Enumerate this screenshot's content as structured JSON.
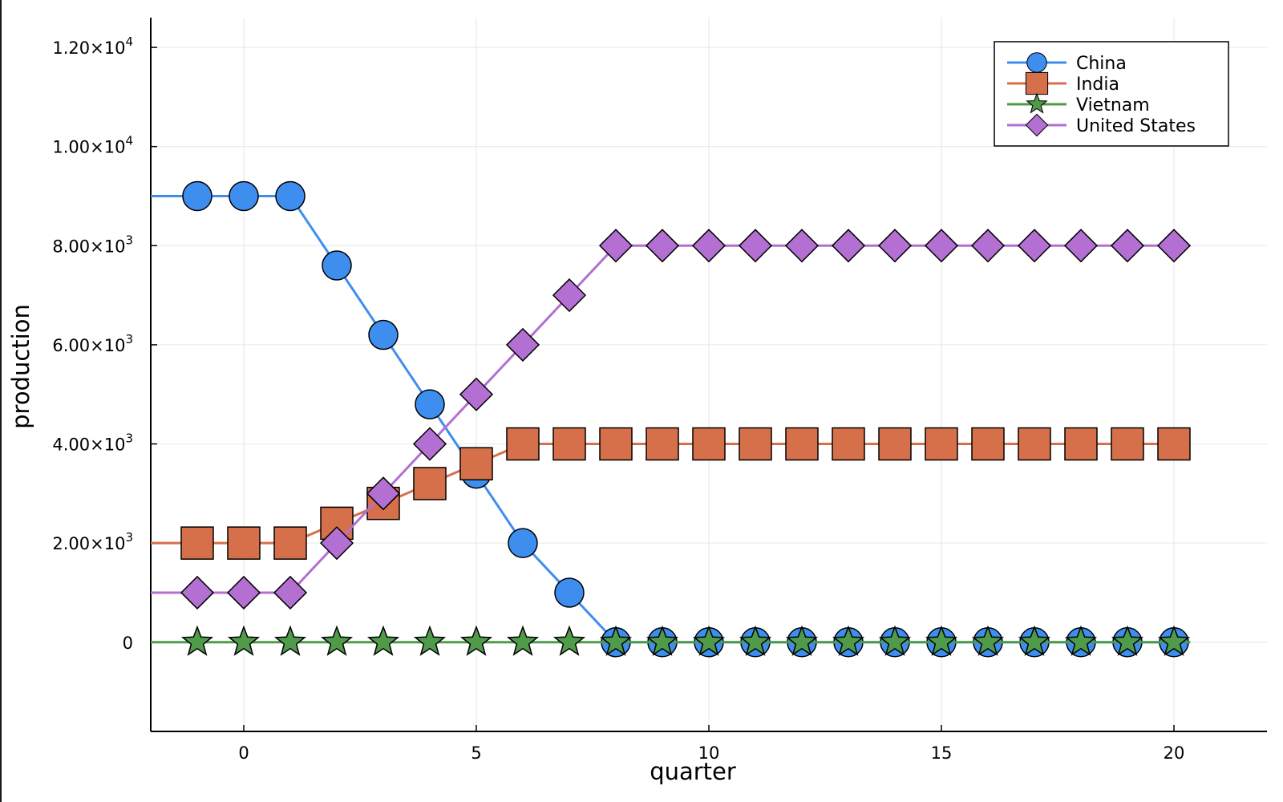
{
  "chart_data": {
    "type": "line",
    "xlabel": "quarter",
    "ylabel": "production",
    "xlim": [
      -2,
      22
    ],
    "ylim": [
      -1800,
      12600
    ],
    "x_ticks": [
      0,
      5,
      10,
      15,
      20
    ],
    "x_tick_labels": [
      "0",
      "5",
      "10",
      "15",
      "20"
    ],
    "y_ticks": [
      {
        "value": 12000,
        "mantissa": "1.20",
        "exp": "4"
      },
      {
        "value": 10000,
        "mantissa": "1.00",
        "exp": "4"
      },
      {
        "value": 8000,
        "mantissa": "8.00",
        "exp": "3"
      },
      {
        "value": 6000,
        "mantissa": "6.00",
        "exp": "3"
      },
      {
        "value": 4000,
        "mantissa": "4.00",
        "exp": "3"
      },
      {
        "value": 2000,
        "mantissa": "2.00",
        "exp": "3"
      },
      {
        "value": 0,
        "mantissa": "0",
        "exp": ""
      }
    ],
    "grid": true,
    "legend_position": "top-right",
    "x": [
      -1,
      0,
      1,
      2,
      3,
      4,
      5,
      6,
      7,
      8,
      9,
      10,
      11,
      12,
      13,
      14,
      15,
      16,
      17,
      18,
      19,
      20
    ],
    "series": [
      {
        "name": "China",
        "color": "#3e8ef0",
        "marker": "circle",
        "values": [
          9000,
          9000,
          9000,
          7600,
          6200,
          4800,
          3400,
          2000,
          1000,
          0,
          0,
          0,
          0,
          0,
          0,
          0,
          0,
          0,
          0,
          0,
          0,
          0
        ]
      },
      {
        "name": "India",
        "color": "#d6704a",
        "marker": "square",
        "values": [
          2000,
          2000,
          2000,
          2400,
          2800,
          3200,
          3600,
          4000,
          4000,
          4000,
          4000,
          4000,
          4000,
          4000,
          4000,
          4000,
          4000,
          4000,
          4000,
          4000,
          4000,
          4000
        ]
      },
      {
        "name": "Vietnam",
        "color": "#4f9b4a",
        "marker": "star",
        "values": [
          0,
          0,
          0,
          0,
          0,
          0,
          0,
          0,
          0,
          0,
          0,
          0,
          0,
          0,
          0,
          0,
          0,
          0,
          0,
          0,
          0,
          0
        ]
      },
      {
        "name": "United States",
        "color": "#b36fd1",
        "marker": "diamond",
        "values": [
          1000,
          1000,
          1000,
          2000,
          3000,
          4000,
          5000,
          6000,
          7000,
          8000,
          8000,
          8000,
          8000,
          8000,
          8000,
          8000,
          8000,
          8000,
          8000,
          8000,
          8000,
          8000
        ]
      }
    ],
    "series_draw_order": [
      "China",
      "India",
      "United States",
      "Vietnam"
    ],
    "china_marker_extension": [
      0,
      0,
      0,
      0,
      0,
      0,
      0,
      0,
      0,
      0,
      0,
      0,
      0
    ]
  }
}
